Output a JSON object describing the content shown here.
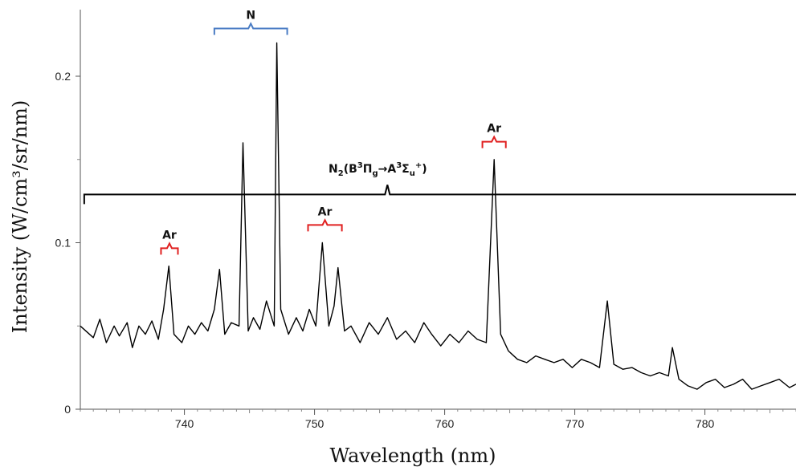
{
  "chart_data": {
    "type": "line",
    "xlabel": "Wavelength (nm)",
    "ylabel": "Intensity (W/cm³/sr/nm)",
    "xlim": [
      732,
      787
    ],
    "ylim": [
      0,
      0.24
    ],
    "x_ticks": [
      740,
      750,
      760,
      770,
      780
    ],
    "y_ticks": [
      0,
      0.1,
      0.2
    ],
    "x_tick_labels": [
      "740",
      "750",
      "760",
      "770",
      "780"
    ],
    "y_tick_labels": [
      "0",
      "0.1",
      "0.2"
    ],
    "grid": false,
    "line_color": "#000000",
    "series": [
      {
        "x": [
          732.0,
          733.0,
          733.5,
          734.0,
          734.6,
          735.0,
          735.6,
          736.0,
          736.5,
          737.0,
          737.5,
          738.0,
          738.4,
          738.8,
          739.2,
          739.8,
          740.3,
          740.8,
          741.3,
          741.8,
          742.3,
          742.7,
          743.1,
          743.6,
          744.2,
          744.5,
          744.9,
          745.3,
          745.8,
          746.3,
          746.9,
          747.1,
          747.4,
          748.0,
          748.6,
          749.1,
          749.6,
          750.1,
          750.6,
          751.1,
          751.5,
          751.8,
          752.3,
          752.8,
          753.5,
          754.2,
          754.9,
          755.6,
          756.3,
          757.0,
          757.7,
          758.4,
          759.0,
          759.7,
          760.4,
          761.1,
          761.8,
          762.5,
          763.2,
          763.8,
          764.3,
          764.9,
          765.6,
          766.3,
          767.0,
          767.7,
          768.4,
          769.1,
          769.8,
          770.5,
          771.2,
          771.9,
          772.5,
          773.0,
          773.7,
          774.4,
          775.1,
          775.8,
          776.5,
          777.2,
          777.5,
          778.0,
          778.7,
          779.4,
          780.1,
          780.8,
          781.5,
          782.2,
          782.9,
          783.6,
          784.3,
          785.0,
          785.7,
          786.5,
          787.0
        ],
        "y": [
          0.05,
          0.043,
          0.054,
          0.04,
          0.05,
          0.044,
          0.052,
          0.037,
          0.05,
          0.045,
          0.053,
          0.042,
          0.06,
          0.086,
          0.045,
          0.04,
          0.05,
          0.045,
          0.052,
          0.047,
          0.06,
          0.084,
          0.045,
          0.052,
          0.05,
          0.16,
          0.047,
          0.055,
          0.048,
          0.065,
          0.05,
          0.22,
          0.06,
          0.045,
          0.055,
          0.047,
          0.06,
          0.05,
          0.1,
          0.05,
          0.062,
          0.085,
          0.047,
          0.05,
          0.04,
          0.052,
          0.045,
          0.055,
          0.042,
          0.047,
          0.04,
          0.052,
          0.045,
          0.038,
          0.045,
          0.04,
          0.047,
          0.042,
          0.04,
          0.15,
          0.045,
          0.035,
          0.03,
          0.028,
          0.032,
          0.03,
          0.028,
          0.03,
          0.025,
          0.03,
          0.028,
          0.025,
          0.065,
          0.027,
          0.024,
          0.025,
          0.022,
          0.02,
          0.022,
          0.02,
          0.037,
          0.018,
          0.014,
          0.012,
          0.016,
          0.018,
          0.013,
          0.015,
          0.018,
          0.012,
          0.014,
          0.016,
          0.018,
          0.013,
          0.015
        ]
      }
    ],
    "annotations": [
      {
        "label": "N",
        "x_start": 742.3,
        "x_end": 747.9,
        "y": 0.22,
        "color": "#4a7cc4"
      },
      {
        "label": "Ar",
        "x_start": 738.2,
        "x_end": 739.5,
        "y": 0.088,
        "color": "#e02020"
      },
      {
        "label": "Ar",
        "x_start": 749.5,
        "x_end": 752.1,
        "y": 0.102,
        "color": "#e02020"
      },
      {
        "label": "Ar",
        "x_start": 762.9,
        "x_end": 764.7,
        "y": 0.152,
        "color": "#e02020"
      }
    ],
    "n2_band": {
      "x_start": 732.3,
      "x_end": 787.0,
      "x_peak": 755.6,
      "y": 0.129,
      "color": "#000000",
      "label_parts": {
        "n": "N",
        "n_sub": "2",
        "open": "(B",
        "sup1": "3",
        "pi": "Π",
        "pi_sub": "g",
        "arrow": "→A",
        "sup2": "3",
        "sigma": "Σ",
        "sigma_sub": "u",
        "plus": "+",
        "close": ")"
      }
    }
  }
}
